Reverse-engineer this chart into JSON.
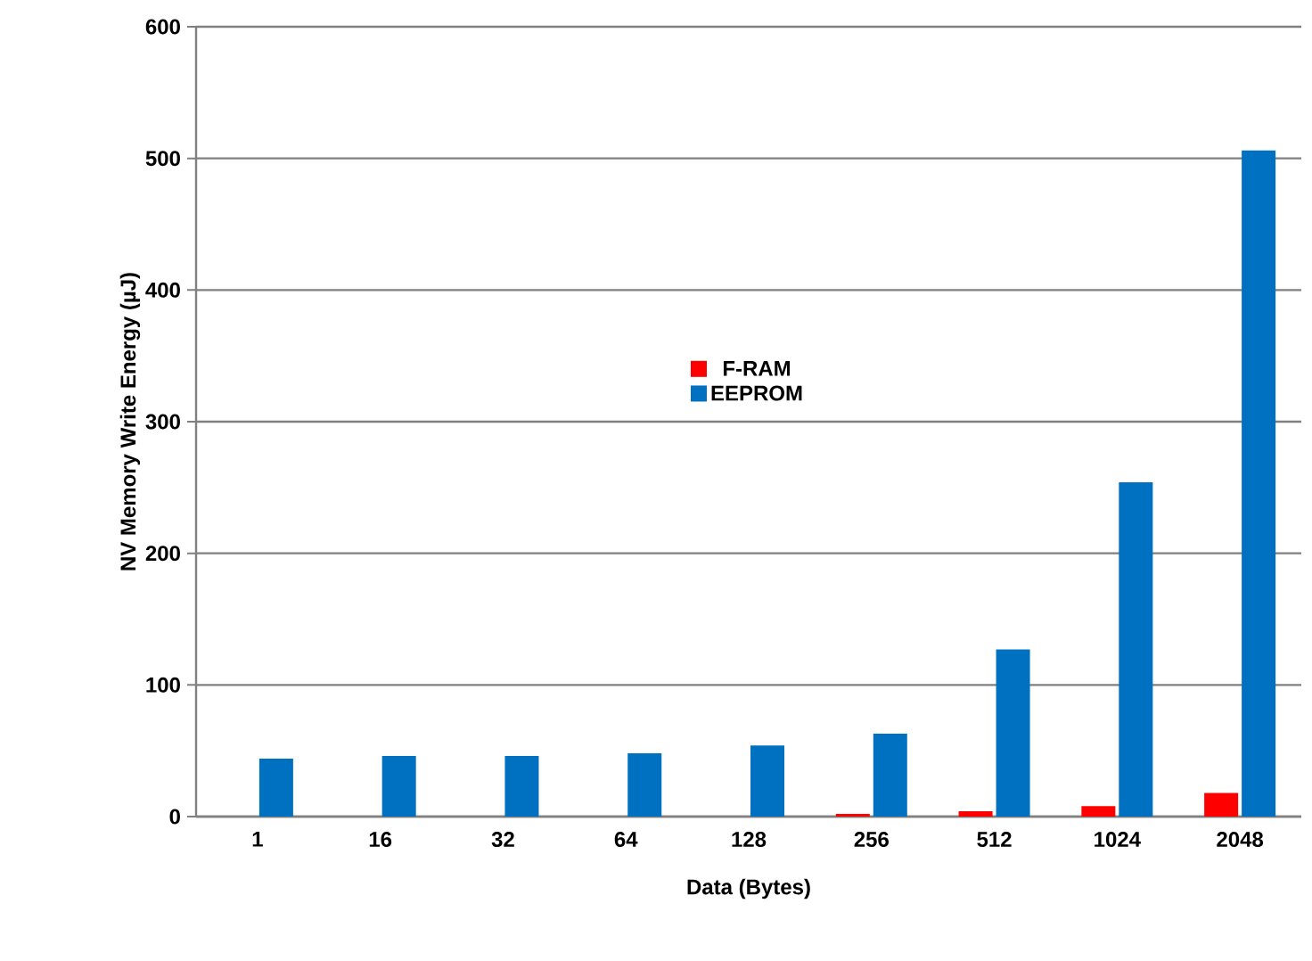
{
  "chart_data": {
    "type": "bar",
    "xlabel": "Data (Bytes)",
    "ylabel": "NV Memory Write Energy (µJ)",
    "categories": [
      "1",
      "16",
      "32",
      "64",
      "128",
      "256",
      "512",
      "1024",
      "2048"
    ],
    "series": [
      {
        "name": "F-RAM",
        "color": "#ff0000",
        "values": [
          null,
          null,
          null,
          null,
          null,
          2,
          4,
          8,
          18
        ]
      },
      {
        "name": "EEPROM",
        "color": "#0070c0",
        "values": [
          44,
          46,
          46,
          48,
          54,
          63,
          127,
          254,
          506
        ]
      }
    ],
    "ylim": [
      0,
      600
    ],
    "yticks": [
      0,
      100,
      200,
      300,
      400,
      500,
      600
    ],
    "grid": "y",
    "legend": "center"
  }
}
